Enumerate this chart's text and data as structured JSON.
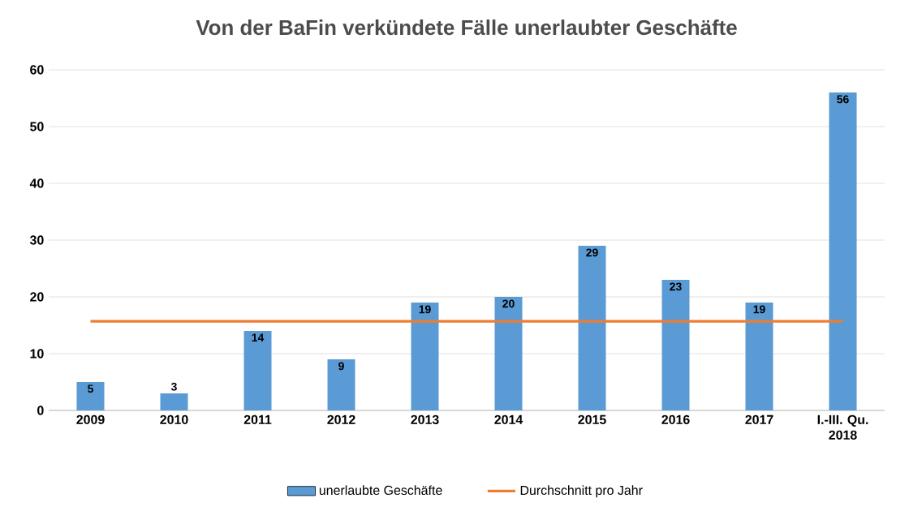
{
  "chart_data": {
    "type": "bar",
    "title": "Von der BaFin verkündete Fälle unerlaubter Geschäfte",
    "categories": [
      "2009",
      "2010",
      "2011",
      "2012",
      "2013",
      "2014",
      "2015",
      "2016",
      "2017",
      "I.-III. Qu. 2018"
    ],
    "series": [
      {
        "name": "unerlaubte Geschäfte",
        "color": "#5b9bd5",
        "values": [
          5,
          3,
          14,
          9,
          19,
          20,
          29,
          23,
          19,
          56
        ],
        "value_labels": [
          "5",
          "3",
          "14",
          "9",
          "19",
          "20",
          "29",
          "23",
          "19",
          "56"
        ]
      },
      {
        "name": "Durchschnitt pro Jahr",
        "type": "line",
        "color": "#ed7d31",
        "values": [
          15.7,
          15.7,
          15.7,
          15.7,
          15.7,
          15.7,
          15.7,
          15.7,
          15.7,
          15.7
        ]
      }
    ],
    "ylim": [
      0,
      60
    ],
    "yticks": [
      0,
      10,
      20,
      30,
      40,
      50,
      60
    ],
    "grid": "y",
    "legend": "bottom"
  }
}
